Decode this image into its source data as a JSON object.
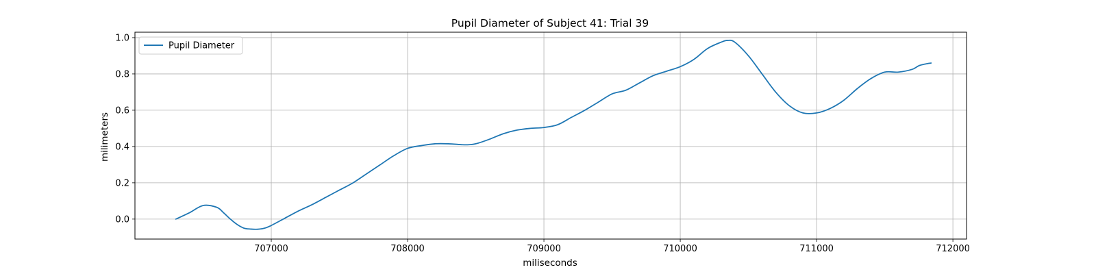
{
  "chart_data": {
    "type": "line",
    "title": "Pupil Diameter of Subject 41: Trial 39",
    "xlabel": "miliseconds",
    "ylabel": "milimeters",
    "xlim": [
      706000,
      712100
    ],
    "ylim": [
      -0.11,
      1.03
    ],
    "x_ticks": [
      707000,
      708000,
      709000,
      710000,
      711000,
      712000
    ],
    "y_ticks": [
      0.0,
      0.2,
      0.4,
      0.6,
      0.8,
      1.0
    ],
    "x_tick_labels": [
      "707000",
      "708000",
      "709000",
      "710000",
      "711000",
      "712000"
    ],
    "y_tick_labels": [
      "0.0",
      "0.2",
      "0.4",
      "0.6",
      "0.8",
      "1.0"
    ],
    "grid": true,
    "legend_position": "top-left",
    "line_color": "#1f77b4",
    "series": [
      {
        "name": "Pupil Diameter",
        "x": [
          706300,
          706400,
          706500,
          706600,
          706650,
          706700,
          706750,
          706800,
          706850,
          706900,
          706950,
          707000,
          707100,
          707200,
          707300,
          707400,
          707500,
          707600,
          707700,
          707800,
          707900,
          708000,
          708100,
          708200,
          708300,
          708400,
          708450,
          708500,
          708600,
          708700,
          708800,
          708900,
          709000,
          709100,
          709200,
          709300,
          709400,
          709500,
          709600,
          709700,
          709800,
          709900,
          710000,
          710100,
          710200,
          710300,
          710350,
          710400,
          710500,
          710600,
          710700,
          710800,
          710900,
          711000,
          711100,
          711200,
          711300,
          711400,
          711500,
          711600,
          711700,
          711750,
          711800,
          711840
        ],
        "values": [
          0.0,
          0.035,
          0.075,
          0.065,
          0.035,
          0.0,
          -0.03,
          -0.05,
          -0.055,
          -0.056,
          -0.05,
          -0.035,
          0.005,
          0.045,
          0.08,
          0.12,
          0.16,
          0.2,
          0.25,
          0.3,
          0.35,
          0.39,
          0.405,
          0.415,
          0.415,
          0.41,
          0.41,
          0.415,
          0.44,
          0.47,
          0.49,
          0.5,
          0.505,
          0.52,
          0.56,
          0.6,
          0.645,
          0.69,
          0.71,
          0.75,
          0.79,
          0.815,
          0.84,
          0.88,
          0.94,
          0.975,
          0.985,
          0.975,
          0.9,
          0.8,
          0.7,
          0.625,
          0.585,
          0.585,
          0.61,
          0.655,
          0.72,
          0.775,
          0.81,
          0.81,
          0.825,
          0.845,
          0.855,
          0.86
        ]
      }
    ]
  }
}
